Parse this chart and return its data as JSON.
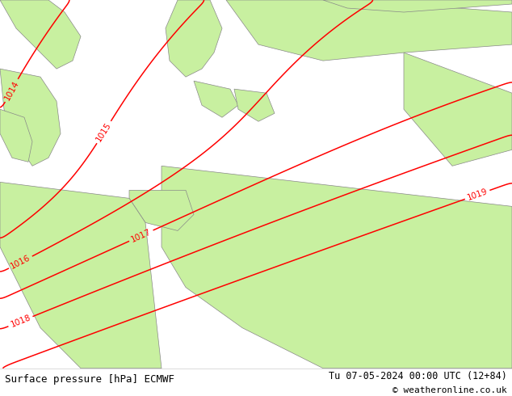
{
  "title_left": "Surface pressure [hPa] ECMWF",
  "title_right": "Tu 07-05-2024 00:00 UTC (12+84)",
  "copyright": "© weatheronline.co.uk",
  "bg_land_color": "#c8f0a0",
  "sea_color": "#d4d4d4",
  "coastline_color": "#888888",
  "red_isobar_color": "#ff0000",
  "blue_isobar_color": "#0000cc",
  "black_isobar_color": "#000000",
  "label_fontsize": 7.5,
  "title_fontsize": 9,
  "figsize": [
    6.34,
    4.9
  ],
  "dpi": 100,
  "bottom_bar_color": "#ffffff",
  "bottom_text_color": "#000000"
}
